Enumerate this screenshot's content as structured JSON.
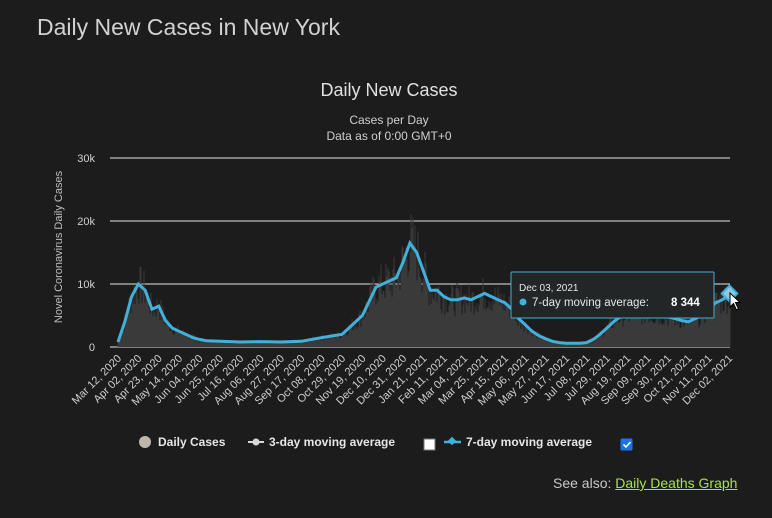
{
  "page": {
    "title": "Daily New Cases in New York"
  },
  "see_also": {
    "prefix": "See also:",
    "link_label": "Daily Deaths Graph"
  },
  "colors": {
    "background": "#1c1c1d",
    "line7": "#43b0dc",
    "bars": "#3b3b3b",
    "link": "#a8e04d",
    "grid": "#e6e6e6"
  },
  "legend": {
    "items": [
      {
        "label": "Daily Cases",
        "icon": "circle-marker-icon",
        "checked": null
      },
      {
        "label": "3-day moving average",
        "icon": "line-dot-marker-icon",
        "checked": false
      },
      {
        "label": "7-day moving average",
        "icon": "line-diamond-marker-icon",
        "checked": true
      }
    ]
  },
  "tooltip": {
    "date": "Dec 03, 2021",
    "series": "7-day moving average:",
    "value": "8 344"
  },
  "chart_data": {
    "type": "line",
    "title": "Daily New Cases",
    "subtitle": "Cases per Day",
    "subtitle2": "Data as of 0:00 GMT+0",
    "xlabel": "",
    "ylabel": "Novel Coronavirus Daily Cases",
    "ylim": [
      0,
      30000
    ],
    "yticks": [
      0,
      10000,
      20000,
      30000
    ],
    "ytick_labels": [
      "0",
      "10k",
      "20k",
      "30k"
    ],
    "grid": true,
    "legend_position": "bottom",
    "xtick_labels": [
      "Mar 12, 2020",
      "Apr 02, 2020",
      "Apr 23, 2020",
      "May 14, 2020",
      "Jun 04, 2020",
      "Jun 25, 2020",
      "Jul 16, 2020",
      "Aug 06, 2020",
      "Aug 27, 2020",
      "Sep 17, 2020",
      "Oct 08, 2020",
      "Oct 29, 2020",
      "Nov 19, 2020",
      "Dec 10, 2020",
      "Dec 31, 2020",
      "Jan 21, 2021",
      "Feb 11, 2021",
      "Mar 04, 2021",
      "Mar 25, 2021",
      "Apr 15, 2021",
      "May 06, 2021",
      "May 27, 2021",
      "Jun 17, 2021",
      "Jul 08, 2021",
      "Jul 29, 2021",
      "Aug 19, 2021",
      "Sep 09, 2021",
      "Sep 30, 2021",
      "Oct 21, 2021",
      "Nov 11, 2021",
      "Dec 02, 2021"
    ],
    "series": [
      {
        "name": "7-day moving average",
        "x": [
          "Mar 12, 2020",
          "Mar 19, 2020",
          "Mar 26, 2020",
          "Apr 02, 2020",
          "Apr 09, 2020",
          "Apr 16, 2020",
          "Apr 23, 2020",
          "Apr 30, 2020",
          "May 07, 2020",
          "May 14, 2020",
          "May 21, 2020",
          "May 28, 2020",
          "Jun 04, 2020",
          "Jun 11, 2020",
          "Jun 25, 2020",
          "Jul 16, 2020",
          "Aug 06, 2020",
          "Aug 27, 2020",
          "Sep 17, 2020",
          "Oct 08, 2020",
          "Oct 29, 2020",
          "Nov 05, 2020",
          "Nov 19, 2020",
          "Dec 03, 2020",
          "Dec 10, 2020",
          "Dec 17, 2020",
          "Dec 24, 2020",
          "Dec 31, 2020",
          "Jan 07, 2021",
          "Jan 14, 2021",
          "Jan 21, 2021",
          "Jan 28, 2021",
          "Feb 04, 2021",
          "Feb 11, 2021",
          "Feb 18, 2021",
          "Feb 25, 2021",
          "Mar 04, 2021",
          "Mar 11, 2021",
          "Mar 18, 2021",
          "Mar 25, 2021",
          "Apr 01, 2021",
          "Apr 08, 2021",
          "Apr 15, 2021",
          "Apr 22, 2021",
          "Apr 29, 2021",
          "May 06, 2021",
          "May 13, 2021",
          "May 20, 2021",
          "May 27, 2021",
          "Jun 03, 2021",
          "Jun 10, 2021",
          "Jun 17, 2021",
          "Jun 24, 2021",
          "Jul 01, 2021",
          "Jul 08, 2021",
          "Jul 15, 2021",
          "Jul 22, 2021",
          "Jul 29, 2021",
          "Aug 05, 2021",
          "Aug 12, 2021",
          "Aug 19, 2021",
          "Aug 26, 2021",
          "Sep 02, 2021",
          "Sep 09, 2021",
          "Sep 16, 2021",
          "Sep 23, 2021",
          "Sep 30, 2021",
          "Oct 07, 2021",
          "Oct 14, 2021",
          "Oct 21, 2021",
          "Oct 28, 2021",
          "Nov 04, 2021",
          "Nov 11, 2021",
          "Nov 18, 2021",
          "Nov 25, 2021",
          "Dec 02, 2021",
          "Dec 03, 2021"
        ],
        "values": [
          800,
          4000,
          8000,
          10000,
          9000,
          6000,
          6500,
          4200,
          3000,
          2500,
          2000,
          1500,
          1200,
          1000,
          900,
          800,
          850,
          800,
          900,
          1500,
          2000,
          3000,
          5000,
          9500,
          10000,
          10500,
          11000,
          13500,
          16500,
          15000,
          12000,
          9000,
          9000,
          8000,
          7500,
          7500,
          7800,
          7500,
          8000,
          8500,
          8000,
          7500,
          7000,
          6000,
          4500,
          3500,
          2500,
          1800,
          1300,
          900,
          700,
          600,
          600,
          600,
          700,
          1200,
          2000,
          3000,
          4000,
          4800,
          5000,
          5200,
          5300,
          5200,
          5000,
          5000,
          4800,
          4500,
          4200,
          4000,
          4500,
          5000,
          6000,
          7000,
          7500,
          8200,
          8344
        ]
      }
    ],
    "bars": {
      "name": "Daily Cases",
      "note": "daily bars approximate the 7-day average with noise",
      "values": []
    }
  }
}
